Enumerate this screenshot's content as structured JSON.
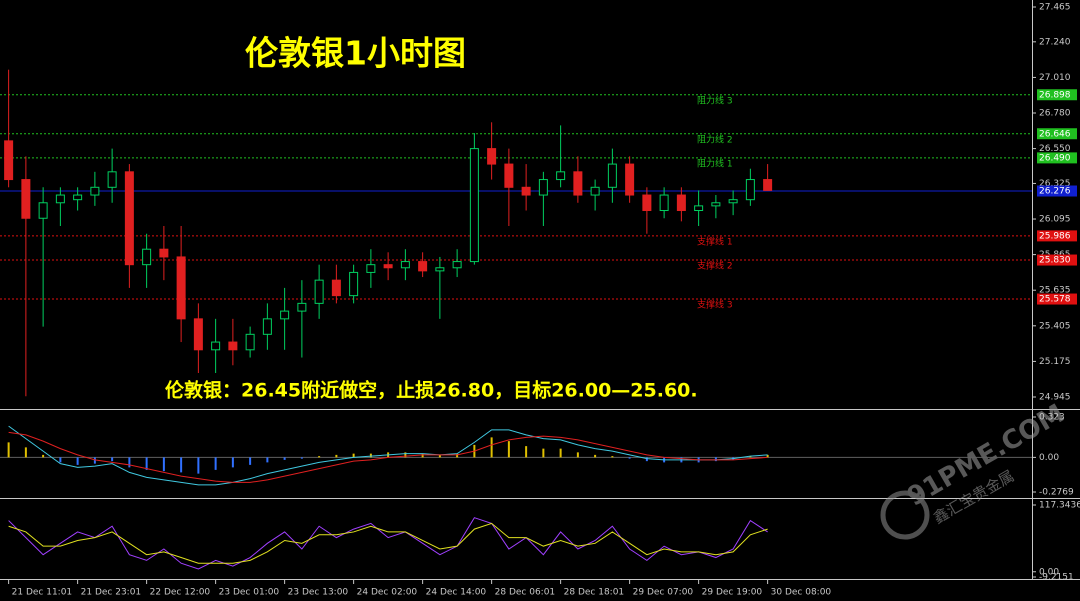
{
  "chart_data": [
    {
      "type": "candlestick",
      "title": "伦敦银1小时图",
      "annotation": "伦敦银：26.45附近做空，止损26.80，目标26.00—25.60.",
      "categories": [
        "21 Dec 11:01",
        null,
        null,
        null,
        "21 Dec 23:01",
        null,
        null,
        null,
        "22 Dec 12:00",
        null,
        null,
        null,
        "23 Dec 01:00",
        null,
        null,
        null,
        "23 Dec 13:00",
        null,
        null,
        null,
        "24 Dec 02:00",
        null,
        null,
        null,
        "24 Dec 14:00",
        null,
        null,
        null,
        "28 Dec 06:01",
        null,
        null,
        null,
        "28 Dec 18:01",
        null,
        null,
        null,
        "29 Dec 07:00",
        null,
        null,
        null,
        "29 Dec 19:00",
        null,
        null,
        null,
        "30 Dec 08:00"
      ],
      "open": [
        26.6,
        26.35,
        26.1,
        26.2,
        26.22,
        26.25,
        26.3,
        26.4,
        25.8,
        25.9,
        25.85,
        25.45,
        25.25,
        25.3,
        25.25,
        25.35,
        25.45,
        25.5,
        25.55,
        25.7,
        25.6,
        25.75,
        25.8,
        25.78,
        25.82,
        25.76,
        25.78,
        25.82,
        26.55,
        26.45,
        26.3,
        26.25,
        26.35,
        26.4,
        26.25,
        26.3,
        26.45,
        26.25,
        26.15,
        26.25,
        26.15,
        26.18,
        26.2,
        26.22,
        26.35
      ],
      "high": [
        27.06,
        26.5,
        26.3,
        26.3,
        26.3,
        26.4,
        26.55,
        26.45,
        26.0,
        26.05,
        26.05,
        25.55,
        25.45,
        25.45,
        25.4,
        25.55,
        25.65,
        25.7,
        25.8,
        25.8,
        25.8,
        25.9,
        25.88,
        25.9,
        25.88,
        25.85,
        25.9,
        26.65,
        26.72,
        26.55,
        26.45,
        26.4,
        26.7,
        26.5,
        26.35,
        26.55,
        26.5,
        26.3,
        26.3,
        26.3,
        26.28,
        26.25,
        26.28,
        26.42,
        26.45
      ],
      "low": [
        26.3,
        24.95,
        25.4,
        26.05,
        26.15,
        26.18,
        26.2,
        25.65,
        25.65,
        25.7,
        25.3,
        25.1,
        25.1,
        25.15,
        25.2,
        25.25,
        25.25,
        25.2,
        25.45,
        25.55,
        25.55,
        25.65,
        25.7,
        25.7,
        25.72,
        25.45,
        25.72,
        25.8,
        26.35,
        26.05,
        26.15,
        26.05,
        26.3,
        26.2,
        26.15,
        26.2,
        26.2,
        26.0,
        26.1,
        26.08,
        26.05,
        26.1,
        26.12,
        26.18,
        26.28
      ],
      "close": [
        26.35,
        26.1,
        26.2,
        26.25,
        26.25,
        26.3,
        26.4,
        25.8,
        25.9,
        25.85,
        25.45,
        25.25,
        25.3,
        25.25,
        25.35,
        25.45,
        25.5,
        25.55,
        25.7,
        25.6,
        25.75,
        25.8,
        25.78,
        25.82,
        25.76,
        25.78,
        25.82,
        26.55,
        26.45,
        26.3,
        26.25,
        26.35,
        26.4,
        26.25,
        26.3,
        26.45,
        26.25,
        26.15,
        26.25,
        26.15,
        26.18,
        26.2,
        26.22,
        26.35,
        26.28
      ],
      "up_color": "#00d060",
      "down_color": "#e02020",
      "ylim": [
        24.945,
        27.465
      ],
      "yticks": [
        27.465,
        {
          "value": 27.24,
          "label": "27.240"
        },
        {
          "value": 27.01,
          "label": "27.010"
        },
        {
          "value": 26.78,
          "label": "26.780"
        },
        {
          "value": 26.55,
          "label": "26.550"
        },
        26.325,
        26.095,
        25.865,
        25.635,
        25.405,
        25.175,
        24.945
      ],
      "levels": [
        {
          "name": "阻力线 3",
          "value": 26.898,
          "color": "#20c020"
        },
        {
          "name": "阻力线 2",
          "value": 26.646,
          "color": "#20c020"
        },
        {
          "name": "阻力线 1",
          "value": 26.49,
          "label": "26.490",
          "color": "#20c020"
        },
        {
          "name": "支撑线 1",
          "value": 25.986,
          "color": "#e01010"
        },
        {
          "name": "支撑线 2",
          "value": 25.83,
          "label": "25.830",
          "color": "#e01010"
        },
        {
          "name": "支撑线 3",
          "value": 25.578,
          "color": "#e01010"
        }
      ],
      "current_price": 26.276,
      "current_color": "#1020d0"
    },
    {
      "type": "macd",
      "histogram": {
        "pos_color": "#e0c000",
        "neg_color": "#3070ff",
        "values": [
          0.12,
          0.08,
          0.02,
          -0.04,
          -0.06,
          -0.05,
          -0.03,
          -0.08,
          -0.1,
          -0.11,
          -0.12,
          -0.13,
          -0.1,
          -0.08,
          -0.06,
          -0.04,
          -0.02,
          -0.01,
          0.01,
          0.02,
          0.03,
          0.03,
          0.04,
          0.04,
          0.03,
          0.02,
          0.03,
          0.1,
          0.16,
          0.13,
          0.09,
          0.07,
          0.07,
          0.04,
          0.02,
          0.01,
          -0.01,
          -0.03,
          -0.04,
          -0.04,
          -0.04,
          -0.03,
          -0.02,
          0.01,
          0.02
        ]
      },
      "lines": [
        {
          "color": "#40c8e0",
          "values": [
            0.25,
            0.15,
            0.05,
            -0.05,
            -0.08,
            -0.07,
            -0.05,
            -0.12,
            -0.16,
            -0.18,
            -0.2,
            -0.22,
            -0.22,
            -0.2,
            -0.17,
            -0.13,
            -0.1,
            -0.07,
            -0.04,
            -0.02,
            0.0,
            0.01,
            0.02,
            0.03,
            0.03,
            0.02,
            0.03,
            0.12,
            0.22,
            0.22,
            0.18,
            0.15,
            0.14,
            0.1,
            0.07,
            0.05,
            0.02,
            -0.01,
            -0.02,
            -0.02,
            -0.02,
            -0.02,
            -0.01,
            0.01,
            0.02
          ]
        },
        {
          "color": "#e02020",
          "values": [
            0.2,
            0.18,
            0.13,
            0.07,
            0.02,
            -0.02,
            -0.04,
            -0.06,
            -0.09,
            -0.12,
            -0.15,
            -0.17,
            -0.19,
            -0.2,
            -0.2,
            -0.18,
            -0.15,
            -0.12,
            -0.09,
            -0.06,
            -0.03,
            -0.02,
            0.0,
            0.01,
            0.02,
            0.02,
            0.02,
            0.05,
            0.1,
            0.14,
            0.16,
            0.17,
            0.16,
            0.14,
            0.11,
            0.08,
            0.05,
            0.02,
            0.0,
            -0.01,
            -0.02,
            -0.02,
            -0.02,
            -0.01,
            0.0
          ]
        }
      ],
      "ylim": [
        -0.2769,
        0.323
      ],
      "yticks": [
        0.323,
        {
          "value": 0,
          "label": "0.00"
        },
        -0.2769
      ]
    },
    {
      "type": "stochastic",
      "lines": [
        {
          "color": "#a040ff",
          "values": [
            90,
            60,
            30,
            50,
            70,
            60,
            80,
            30,
            20,
            40,
            15,
            5,
            20,
            10,
            25,
            50,
            70,
            40,
            80,
            60,
            75,
            85,
            60,
            70,
            50,
            30,
            45,
            95,
            85,
            40,
            60,
            30,
            70,
            40,
            55,
            80,
            40,
            20,
            45,
            30,
            35,
            25,
            40,
            90,
            70
          ]
        },
        {
          "color": "#e0e020",
          "values": [
            80,
            70,
            45,
            45,
            55,
            60,
            70,
            50,
            30,
            35,
            25,
            15,
            15,
            15,
            20,
            35,
            55,
            50,
            65,
            65,
            70,
            80,
            70,
            70,
            55,
            40,
            45,
            75,
            85,
            60,
            60,
            45,
            55,
            45,
            50,
            70,
            50,
            30,
            40,
            35,
            35,
            30,
            35,
            65,
            75
          ]
        }
      ],
      "ylim": [
        -9.2151,
        117.3436
      ],
      "yticks": [
        117.3436,
        {
          "value": 0,
          "label": "0.00"
        },
        -9.2151
      ]
    }
  ],
  "watermark": {
    "text": "91PME.COM",
    "subtext": "鑫汇宝贵金属"
  }
}
